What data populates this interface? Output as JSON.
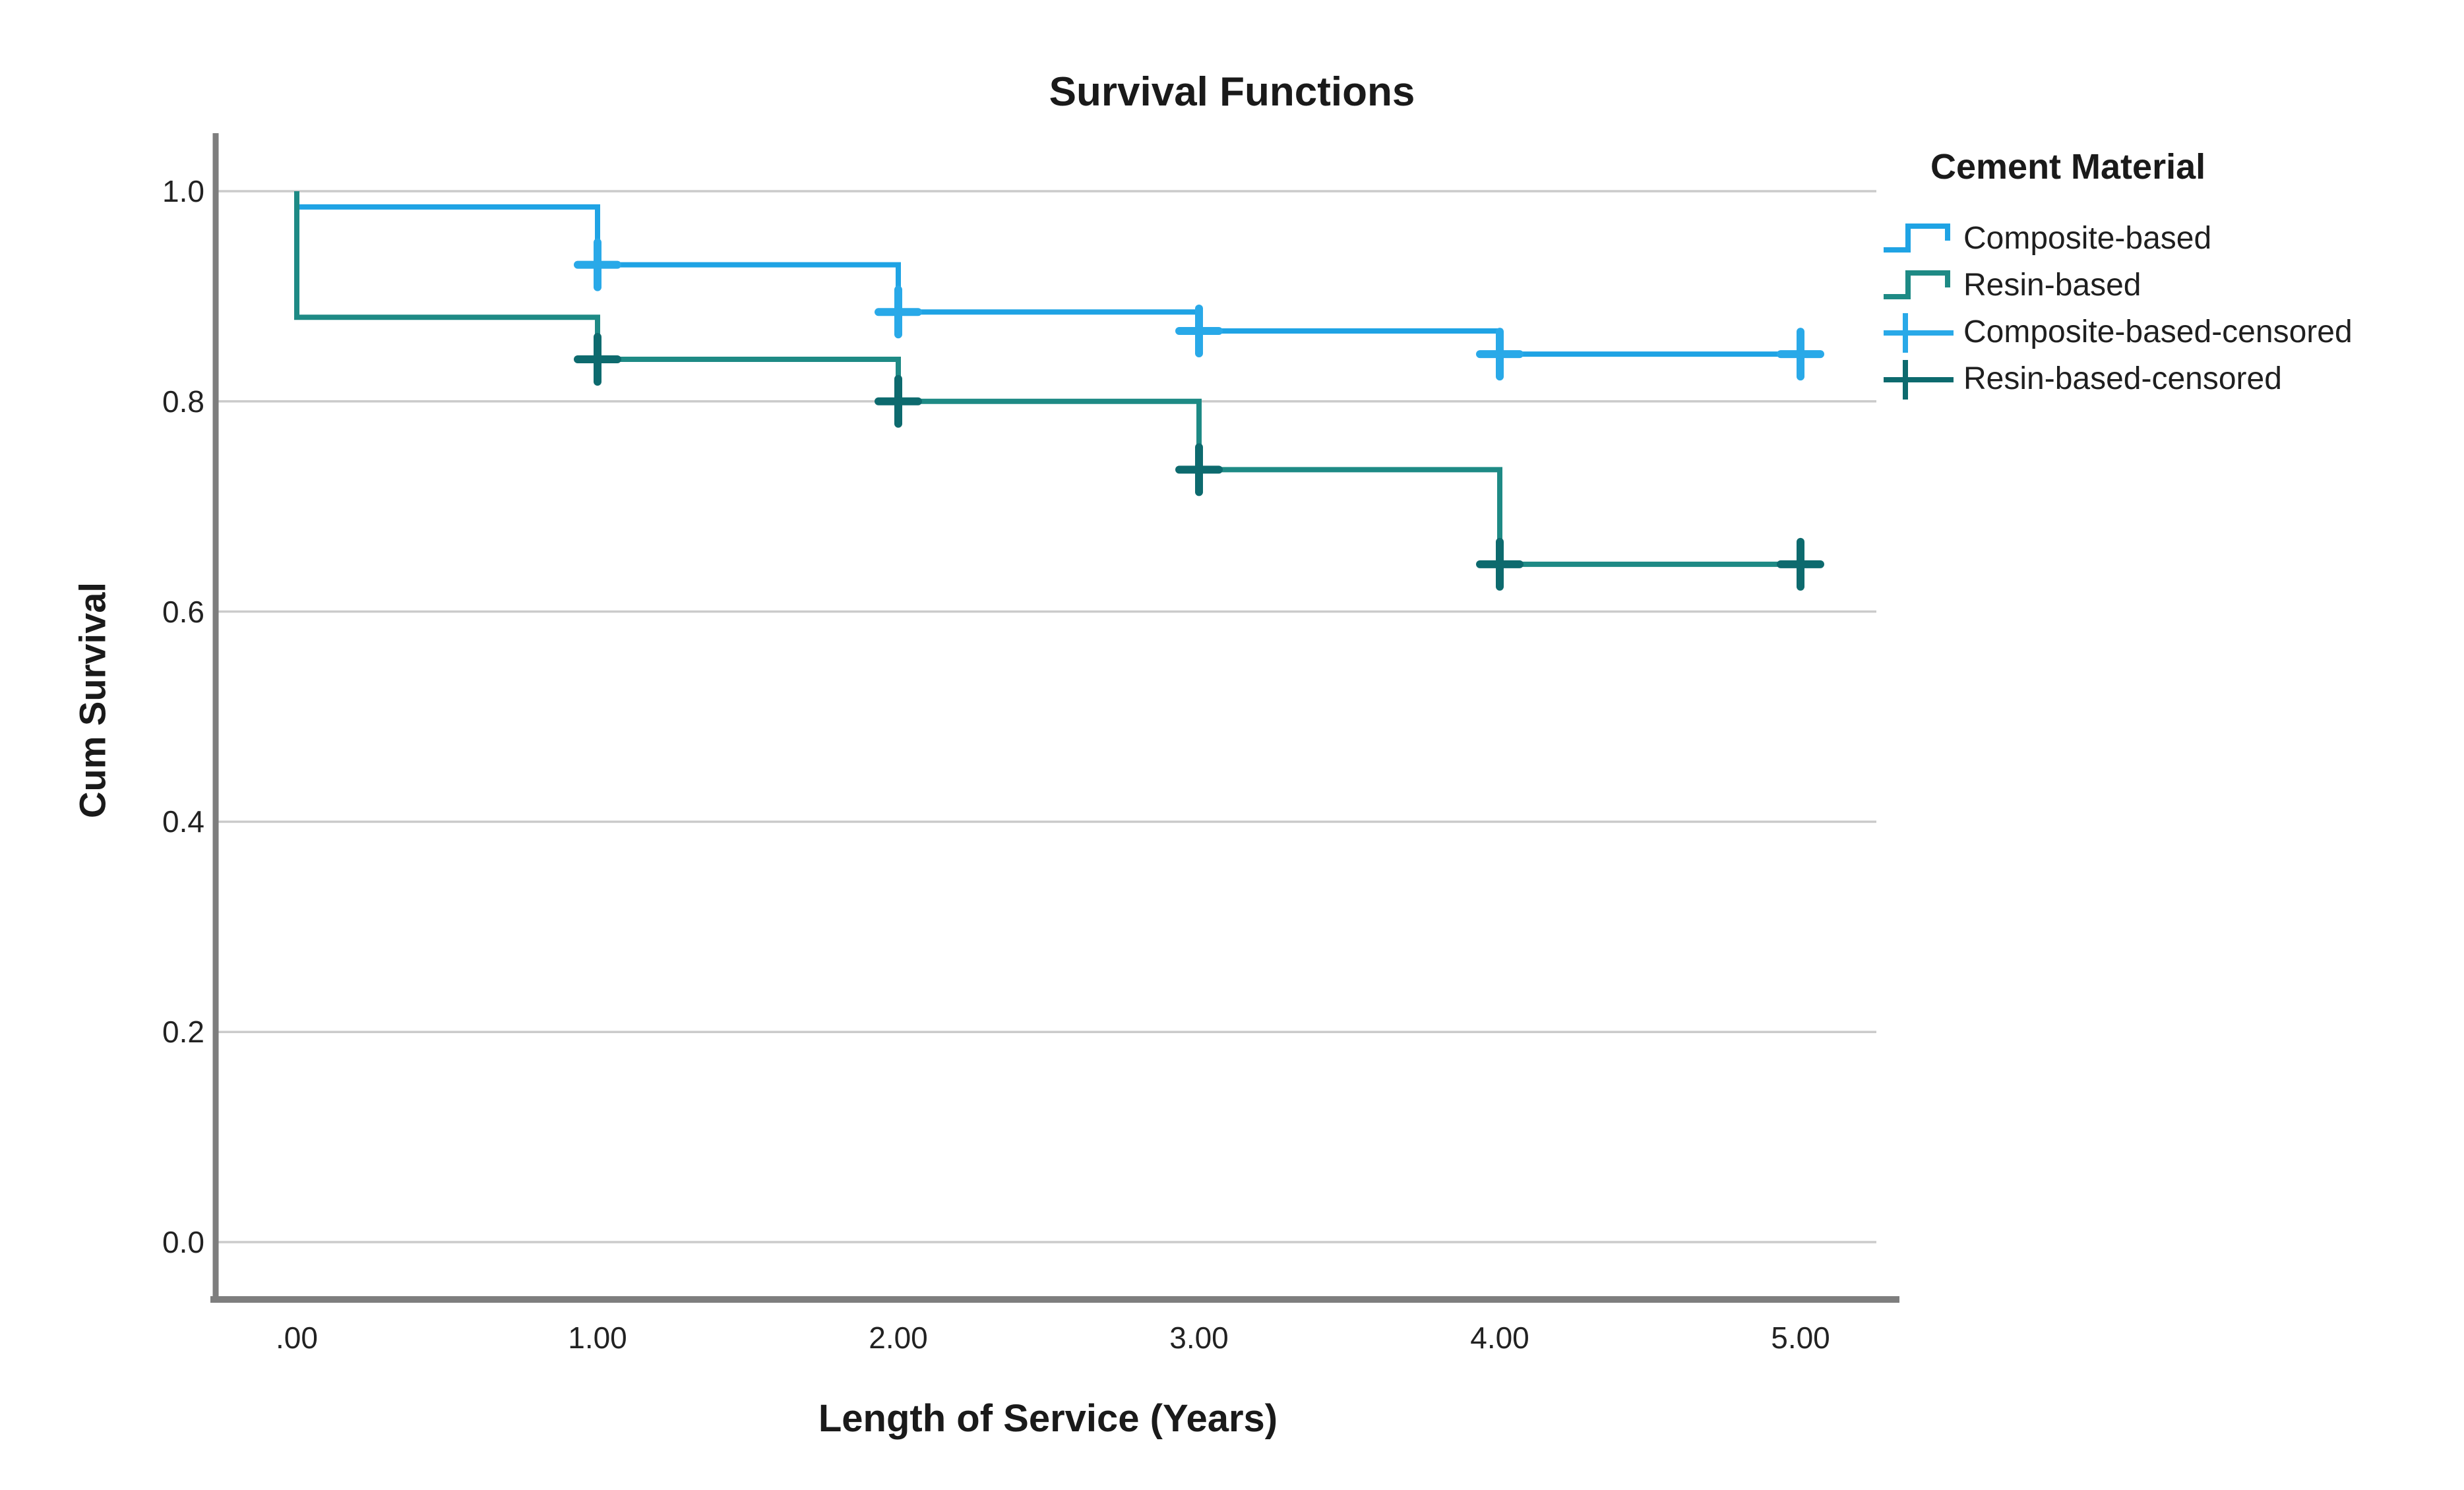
{
  "title": "Survival Functions",
  "axes": {
    "x_title": "Length of Service (Years)",
    "y_title": "Cum Survival"
  },
  "legend": {
    "title": "Cement Material",
    "items": [
      {
        "label": "Composite-based",
        "type": "step",
        "color": "#1FA3E4"
      },
      {
        "label": "Resin-based",
        "type": "step",
        "color": "#1E8A85"
      },
      {
        "label": "Composite-based-censored",
        "type": "censor",
        "color": "#29A9E8"
      },
      {
        "label": "Resin-based-censored",
        "type": "censor",
        "color": "#0D6A6E"
      }
    ]
  },
  "colors": {
    "background": "#FFFFFF",
    "grid": "#CBCBCB",
    "axis": "#7E7E7E",
    "text": "#1A1A1A"
  },
  "chart_data": {
    "type": "line",
    "subtype": "kaplan_meier_step_survival",
    "title": "Survival Functions",
    "xlabel": "Length of Service (Years)",
    "ylabel": "Cum Survival",
    "xticks": [
      0,
      1,
      2,
      3,
      4,
      5
    ],
    "xtick_labels": [
      ".00",
      "1.00",
      "2.00",
      "3.00",
      "4.00",
      "5.00"
    ],
    "yticks": [
      0.0,
      0.2,
      0.4,
      0.6,
      0.8,
      1.0
    ],
    "ytick_labels": [
      "0.0",
      "0.2",
      "0.4",
      "0.6",
      "0.8",
      "1.0"
    ],
    "xlim": [
      -0.27,
      5.26
    ],
    "ylim": [
      -0.06,
      1.06
    ],
    "grid": true,
    "legend_position": "right",
    "legend_title": "Cement Material",
    "series": [
      {
        "name": "Composite-based",
        "color": "#1FA3E4",
        "censor_color": "#29A9E8",
        "start": {
          "t": 0,
          "s": 1.0
        },
        "steps": [
          {
            "t": 0,
            "s": 0.985
          },
          {
            "t": 1,
            "s": 0.93
          },
          {
            "t": 2,
            "s": 0.885
          },
          {
            "t": 3,
            "s": 0.867
          },
          {
            "t": 4,
            "s": 0.845
          }
        ],
        "end_t": 5.06,
        "censored": [
          {
            "t": 1,
            "s": 0.93
          },
          {
            "t": 2,
            "s": 0.885
          },
          {
            "t": 3,
            "s": 0.867
          },
          {
            "t": 4,
            "s": 0.845
          },
          {
            "t": 5,
            "s": 0.845
          }
        ]
      },
      {
        "name": "Resin-based",
        "color": "#1E8A85",
        "censor_color": "#0D6A6E",
        "start": {
          "t": 0,
          "s": 1.0
        },
        "steps": [
          {
            "t": 0,
            "s": 0.88
          },
          {
            "t": 1,
            "s": 0.84
          },
          {
            "t": 2,
            "s": 0.8
          },
          {
            "t": 3,
            "s": 0.735
          },
          {
            "t": 4,
            "s": 0.645
          }
        ],
        "end_t": 5.06,
        "censored": [
          {
            "t": 1,
            "s": 0.84
          },
          {
            "t": 2,
            "s": 0.8
          },
          {
            "t": 3,
            "s": 0.735
          },
          {
            "t": 4,
            "s": 0.645
          },
          {
            "t": 5,
            "s": 0.645
          }
        ]
      }
    ]
  }
}
